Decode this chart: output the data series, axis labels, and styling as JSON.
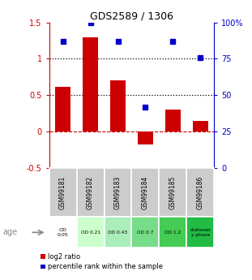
{
  "title": "GDS2589 / 1306",
  "samples": [
    "GSM99181",
    "GSM99182",
    "GSM99183",
    "GSM99184",
    "GSM99185",
    "GSM99186"
  ],
  "log2_ratio": [
    0.62,
    1.3,
    0.7,
    -0.18,
    0.3,
    0.15
  ],
  "percentile_rank": [
    87,
    100,
    87,
    42,
    87,
    76
  ],
  "bar_color": "#cc0000",
  "dot_color": "#0000cc",
  "ylim_left": [
    -0.5,
    1.5
  ],
  "ylim_right": [
    0,
    100
  ],
  "yticks_left": [
    -0.5,
    0,
    0.5,
    1.0,
    1.5
  ],
  "yticks_right": [
    0,
    25,
    50,
    75,
    100
  ],
  "ytick_labels_left": [
    "-0.5",
    "0",
    "0.5",
    "1",
    "1.5"
  ],
  "ytick_labels_right": [
    "0",
    "25",
    "50",
    "75",
    "100%"
  ],
  "hlines": [
    0.5,
    1.0
  ],
  "zero_line_color": "#cc0000",
  "hline_color": "black",
  "age_labels": [
    "OD\n0.05",
    "OD 0.21",
    "OD 0.43",
    "OD 0.7",
    "OD 1.2",
    "stationar\ny phase"
  ],
  "age_bg_colors": [
    "#ffffff",
    "#ccffcc",
    "#aaeebb",
    "#77dd88",
    "#44cc55",
    "#22bb44"
  ],
  "sample_bg_color": "#cccccc",
  "legend_red_label": "log2 ratio",
  "legend_blue_label": "percentile rank within the sample",
  "bar_width": 0.55,
  "background_color": "#f5f5f5"
}
